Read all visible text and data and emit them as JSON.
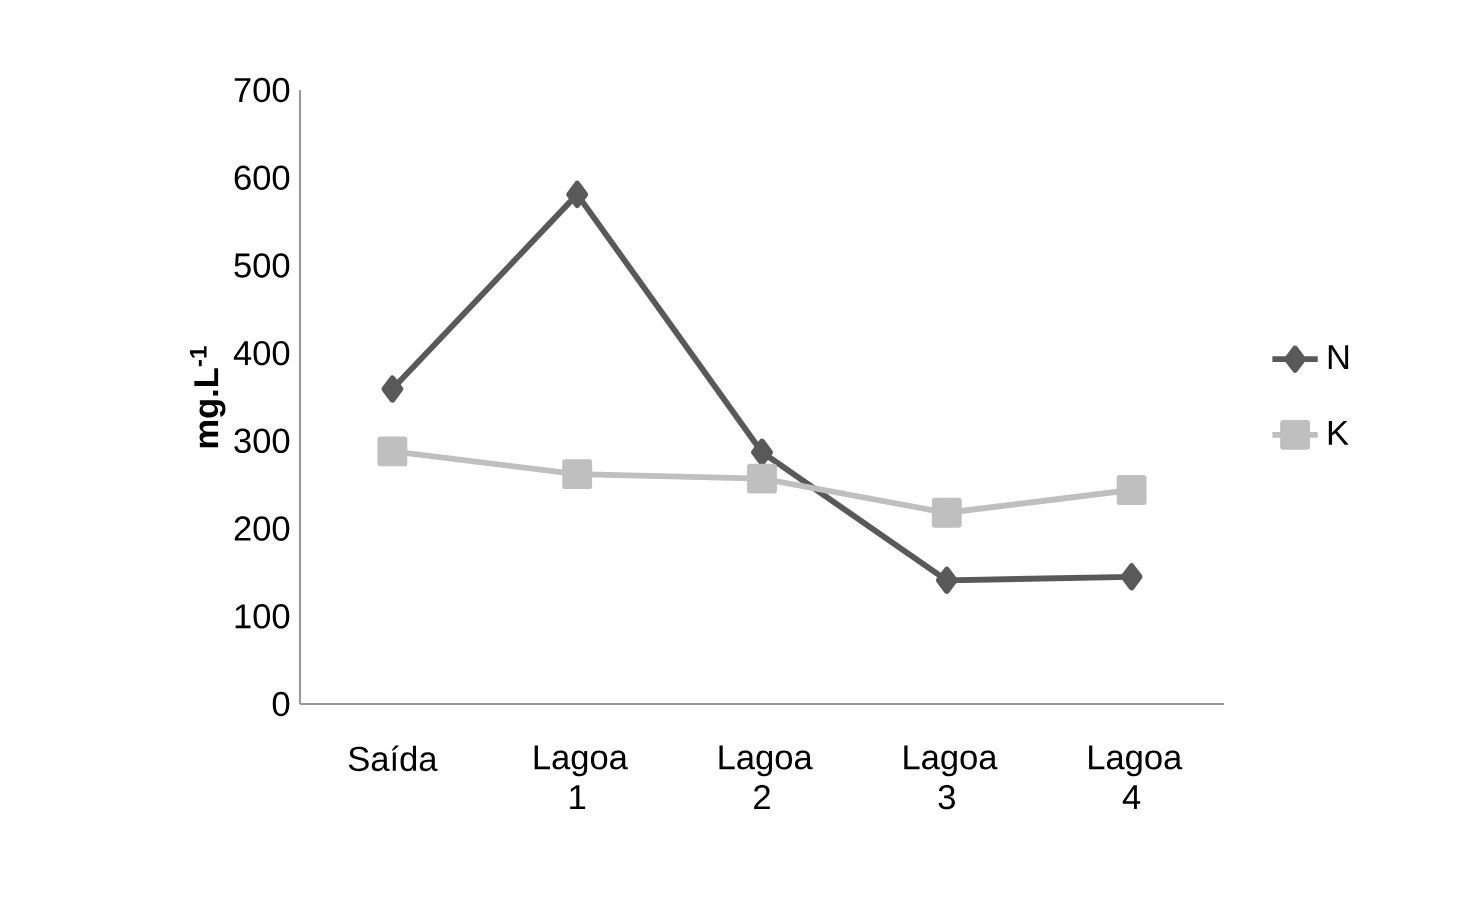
{
  "chart_data": {
    "type": "line",
    "ylabel": "mg.L$^{-1}$",
    "categories": [
      "Saída",
      "Lagoa 1",
      "Lagoa 2",
      "Lagoa 3",
      "Lagoa 4"
    ],
    "series": [
      {
        "name": "N",
        "color": "#595959",
        "marker": "diamond",
        "values": [
          359,
          581,
          287,
          141,
          145
        ]
      },
      {
        "name": "K",
        "color": "#bfbfbf",
        "marker": "square",
        "values": [
          288,
          262,
          257,
          218,
          244
        ]
      }
    ],
    "ylim": [
      0,
      700
    ],
    "yticks": [
      0,
      100,
      200,
      300,
      400,
      500,
      600,
      700
    ],
    "grid": false,
    "legend": "right"
  }
}
